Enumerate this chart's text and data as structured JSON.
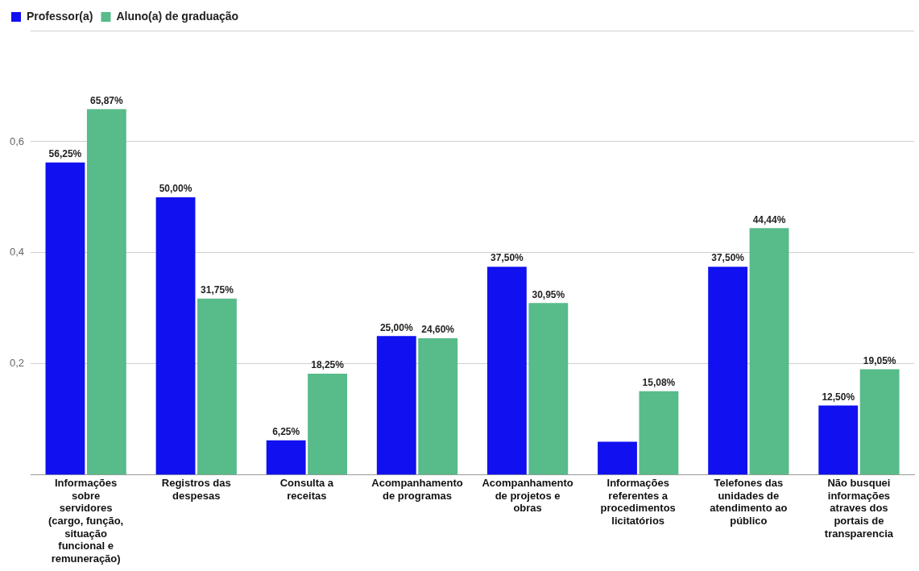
{
  "chart_data": {
    "type": "bar",
    "categories": [
      "Informações sobre servidores (cargo, função, situação funcional e remuneração)",
      "Registros das despesas",
      "Consulta a receitas",
      "Acompanhamento de programas",
      "Acompanhamento de projetos e obras",
      "Informações referentes a procedimentos licitatórios",
      "Telefones das unidades de atendimento ao público",
      "Não busquei informações atraves dos portais de transparencia"
    ],
    "series": [
      {
        "name": "Professor(a)",
        "color": "#1010f0",
        "values": [
          0.5625,
          0.5,
          0.0625,
          0.25,
          0.375,
          0.06,
          0.375,
          0.125
        ],
        "value_labels": [
          "56,25%",
          "50,00%",
          "6,25%",
          "25,00%",
          "37,50%",
          null,
          "37,50%",
          "12,50%"
        ]
      },
      {
        "name": "Aluno(a) de graduação",
        "color": "#57bb8a",
        "values": [
          0.6587,
          0.3175,
          0.1825,
          0.246,
          0.3095,
          0.1508,
          0.4444,
          0.1905
        ],
        "value_labels": [
          "65,87%",
          "31,75%",
          "18,25%",
          "24,60%",
          "30,95%",
          "15,08%",
          "44,44%",
          "19,05%"
        ]
      }
    ],
    "ylim": [
      0,
      0.8
    ],
    "yticks": [
      {
        "value": 0,
        "label": null
      },
      {
        "value": 0.2,
        "label": "0,2"
      },
      {
        "value": 0.4,
        "label": "0,4"
      },
      {
        "value": 0.6,
        "label": "0,6"
      },
      {
        "value": 0.8,
        "label": null
      }
    ],
    "grid": "y",
    "legend": "top left"
  }
}
